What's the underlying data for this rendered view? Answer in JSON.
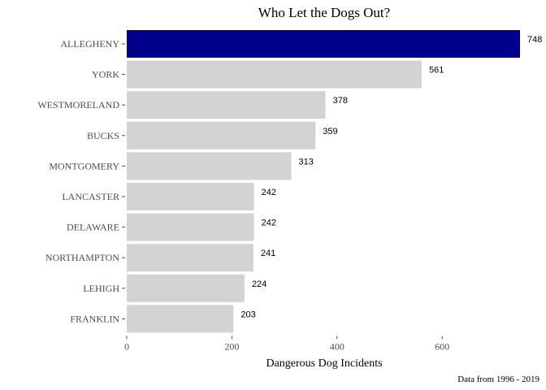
{
  "chart_data": {
    "type": "bar",
    "orientation": "horizontal",
    "title": "Who Let the Dogs Out?",
    "xlabel": "Dangerous Dog Incidents",
    "ylabel": "",
    "caption": "Data from 1996 - 2019",
    "categories": [
      "ALLEGHENY",
      "YORK",
      "WESTMORELAND",
      "BUCKS",
      "MONTGOMERY",
      "LANCASTER",
      "DELAWARE",
      "NORTHAMPTON",
      "LEHIGH",
      "FRANKLIN"
    ],
    "values": [
      748,
      561,
      378,
      359,
      313,
      242,
      242,
      241,
      224,
      203
    ],
    "xlim": [
      0,
      748
    ],
    "xticks": [
      0,
      200,
      400,
      600
    ],
    "grid": false,
    "legend": "none",
    "colors": {
      "highlight": "#00008B",
      "default": "#D3D3D3"
    },
    "highlight_category": "ALLEGHENY"
  }
}
